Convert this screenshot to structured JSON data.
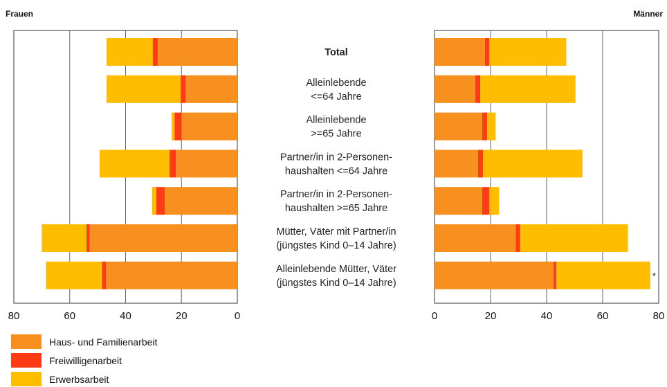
{
  "chart_data": {
    "type": "bar",
    "orientation": "horizontal",
    "layout": "back-to-back",
    "stacked": true,
    "categories": [
      [
        "Total"
      ],
      [
        "Alleinlebende",
        "<=64 Jahre"
      ],
      [
        "Alleinlebende",
        ">=65 Jahre"
      ],
      [
        "Partner/in in 2-Personen-",
        "haushalten <=64 Jahre"
      ],
      [
        "Partner/in in 2-Personen-",
        "haushalten >=65 Jahre"
      ],
      [
        "Mütter, Väter mit Partner/in",
        "(jüngstes Kind 0–14 Jahre)"
      ],
      [
        "Alleinlebende Mütter, Väter",
        "(jüngstes Kind 0–14 Jahre)"
      ]
    ],
    "bold_categories": [
      0
    ],
    "xlim": [
      0,
      80
    ],
    "ticks": [
      "0",
      "20",
      "40",
      "60",
      "80"
    ],
    "grid": true,
    "legend_position": "bottom-left",
    "colors": {
      "Haus- und Familienarbeit": "#f7901e",
      "Freiwilligenarbeit": "#ff3b16",
      "Erwerbsarbeit": "#ffbd00"
    },
    "panels": [
      {
        "title": "Frauen",
        "direction": "reversed",
        "series": [
          {
            "name": "Haus- und Familienarbeit",
            "values": [
              28.5,
              18.5,
              20.0,
              22.0,
              26.0,
              53.0,
              47.0
            ]
          },
          {
            "name": "Freiwilligenarbeit",
            "values": [
              1.8,
              1.8,
              2.5,
              2.3,
              3.0,
              1.0,
              1.5
            ]
          },
          {
            "name": "Erwerbsarbeit",
            "values": [
              16.5,
              26.5,
              1.0,
              25.0,
              1.5,
              16.0,
              20.0
            ]
          }
        ],
        "annotations": []
      },
      {
        "title": "Männer",
        "direction": "normal",
        "series": [
          {
            "name": "Haus- und Familienarbeit",
            "values": [
              18.0,
              14.5,
              17.0,
              15.5,
              17.0,
              29.0,
              42.5
            ]
          },
          {
            "name": "Freiwilligenarbeit",
            "values": [
              1.5,
              1.8,
              1.8,
              1.8,
              2.5,
              1.5,
              1.0
            ]
          },
          {
            "name": "Erwerbsarbeit",
            "values": [
              27.5,
              34.0,
              3.0,
              35.5,
              3.5,
              38.5,
              33.5
            ]
          }
        ],
        "annotations": [
          {
            "category_index": 6,
            "text": "*"
          }
        ]
      }
    ]
  }
}
